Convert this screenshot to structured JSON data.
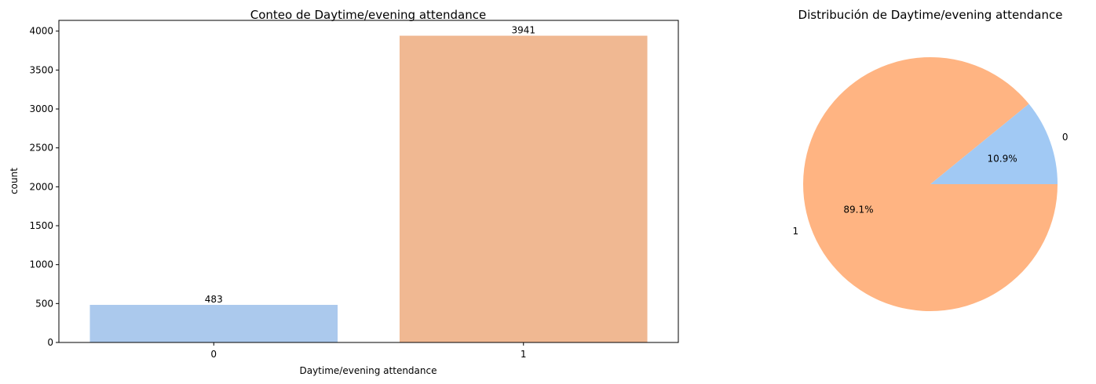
{
  "chart_data": [
    {
      "type": "bar",
      "title": "Conteo de Daytime/evening attendance",
      "xlabel": "Daytime/evening attendance",
      "ylabel": "count",
      "categories": [
        "0",
        "1"
      ],
      "values": [
        483,
        3941
      ],
      "value_labels": [
        "483",
        "3941"
      ],
      "colors": [
        "#abc9ed",
        "#f0b892"
      ],
      "ylim": [
        0,
        4138
      ],
      "yticks": [
        0,
        500,
        1000,
        1500,
        2000,
        2500,
        3000,
        3500,
        4000
      ],
      "ytick_labels": [
        "0",
        "500",
        "1000",
        "1500",
        "2000",
        "2500",
        "3000",
        "3500",
        "4000"
      ],
      "grid": false
    },
    {
      "type": "pie",
      "title": "Distribución de Daytime/evening attendance",
      "labels": [
        "0",
        "1"
      ],
      "values": [
        10.9,
        89.1
      ],
      "pct_labels": [
        "10.9%",
        "89.1%"
      ],
      "colors": [
        "#a1c9f4",
        "#ffb482"
      ]
    }
  ]
}
